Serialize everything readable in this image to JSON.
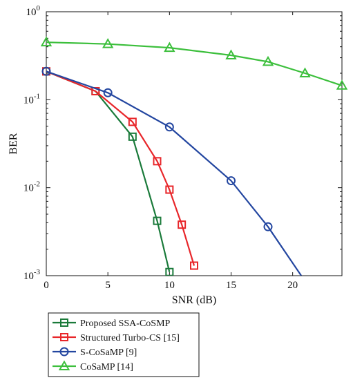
{
  "chart_data": {
    "type": "line",
    "xlabel": "SNR (dB)",
    "ylabel": "BER",
    "xlim": [
      0,
      24
    ],
    "ylim": [
      0.001,
      1
    ],
    "yscale": "log",
    "grid": false,
    "legend_position": "bottom-left, below plot",
    "x_ticks": [
      0,
      5,
      10,
      15,
      20
    ],
    "x_tick_labels": [
      "0",
      "5",
      "10",
      "15",
      "20"
    ],
    "y_ticks": [
      1,
      0.1,
      0.01,
      0.001
    ],
    "y_tick_labels": [
      {
        "base": "10",
        "exp": "0"
      },
      {
        "base": "10",
        "exp": "-1"
      },
      {
        "base": "10",
        "exp": "-2"
      },
      {
        "base": "10",
        "exp": "-3"
      }
    ],
    "series": [
      {
        "name": "Proposed SSA-CoSMP",
        "color": "#1a7a3a",
        "marker": "square",
        "x": [
          0,
          4,
          7,
          9,
          10
        ],
        "y": [
          0.21,
          0.125,
          0.038,
          0.0042,
          0.0011
        ]
      },
      {
        "name": "Structured Turbo-CS [15]",
        "color": "#e8262a",
        "marker": "square",
        "x": [
          0,
          4,
          7,
          9,
          10,
          11,
          12
        ],
        "y": [
          0.21,
          0.125,
          0.056,
          0.02,
          0.0095,
          0.0038,
          0.0013
        ]
      },
      {
        "name": "S-CoSaMP [9]",
        "color": "#2346a0",
        "marker": "circle",
        "x": [
          0,
          5,
          10,
          15,
          18,
          20.7
        ],
        "y": [
          0.21,
          0.12,
          0.049,
          0.012,
          0.0036,
          0.001
        ]
      },
      {
        "name": "CoSaMP [14]",
        "color": "#3cbf3c",
        "marker": "triangle",
        "x": [
          0,
          5,
          10,
          15,
          18,
          21,
          24
        ],
        "y": [
          0.45,
          0.43,
          0.39,
          0.32,
          0.27,
          0.2,
          0.145
        ]
      }
    ]
  }
}
